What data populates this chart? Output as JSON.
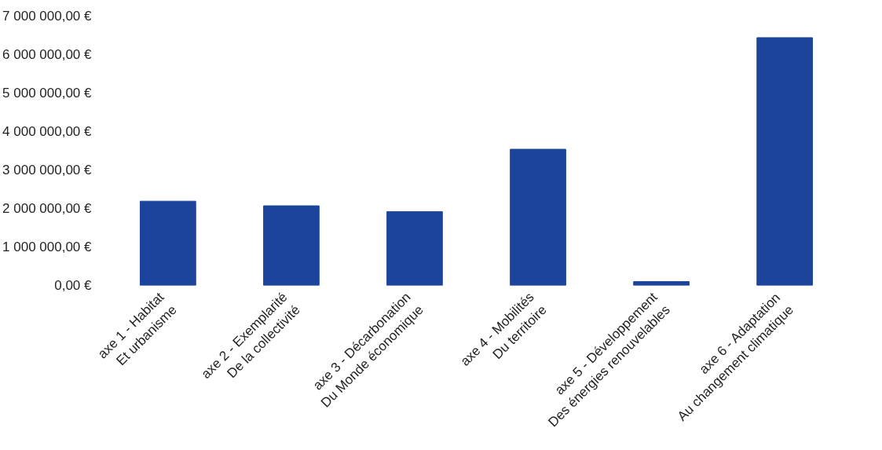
{
  "chart_data": {
    "type": "bar",
    "categories": [
      "axe 1 - Habitat\nEt urbanisme",
      "axe 2 - Exemplarité\nDe la collectivité",
      "axe 3 - Décarbonation\nDu Monde économique",
      "axe 4 - Mobilités\nDu territoire",
      "axe 5 - Développement\nDes énergies renouvelables",
      "axe 6 - Adaptation\nAu changement climatique"
    ],
    "values": [
      2190000,
      2070000,
      1920000,
      3540000,
      100000,
      6440000
    ],
    "color": "#1c449c",
    "ylim": [
      0,
      7000000
    ],
    "yticks": [
      {
        "value": 0,
        "label": "0,00 €"
      },
      {
        "value": 1000000,
        "label": "1 000 000,00 €"
      },
      {
        "value": 2000000,
        "label": "2 000 000,00 €"
      },
      {
        "value": 3000000,
        "label": "3 000 000,00 €"
      },
      {
        "value": 4000000,
        "label": "4 000 000,00 €"
      },
      {
        "value": 5000000,
        "label": "5 000 000,00 €"
      },
      {
        "value": 6000000,
        "label": "6 000 000,00 €"
      },
      {
        "value": 7000000,
        "label": "7 000 000,00 €"
      }
    ],
    "grid": false
  }
}
